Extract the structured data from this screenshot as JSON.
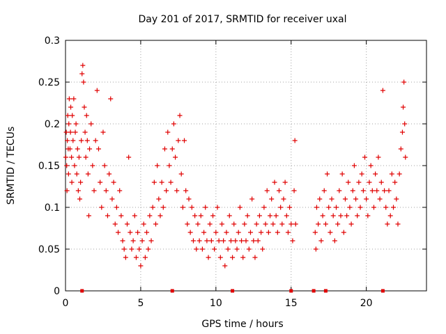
{
  "chart_data": {
    "type": "scatter",
    "title": "Day 201 of 2017, SRMTID for receiver uxal",
    "xlabel": "GPS time / hours",
    "ylabel": "SRMTID / TECUs",
    "xlim": [
      0,
      24
    ],
    "ylim": [
      0,
      0.3
    ],
    "x_ticks": [
      "0",
      "5",
      "10",
      "15",
      "20"
    ],
    "x_tick_values": [
      0,
      5,
      10,
      15,
      20
    ],
    "y_ticks": [
      "0",
      "0.05",
      "0.1",
      "0.15",
      "0.2",
      "0.25",
      "0.3"
    ],
    "y_tick_values": [
      0,
      0.05,
      0.1,
      0.15,
      0.2,
      0.25,
      0.3
    ],
    "grid": true,
    "marker": "+",
    "color": "#e00000",
    "series": [
      {
        "name": "SRMTID",
        "points": [
          [
            0.02,
            0.16
          ],
          [
            0.05,
            0.19
          ],
          [
            0.08,
            0.15
          ],
          [
            0.1,
            0.12
          ],
          [
            0.12,
            0.18
          ],
          [
            0.15,
            0.21
          ],
          [
            0.18,
            0.17
          ],
          [
            0.2,
            0.14
          ],
          [
            0.22,
            0.2
          ],
          [
            0.25,
            0.23
          ],
          [
            0.3,
            0.17
          ],
          [
            0.33,
            0.19
          ],
          [
            0.35,
            0.22
          ],
          [
            0.4,
            0.16
          ],
          [
            0.42,
            0.13
          ],
          [
            0.45,
            0.21
          ],
          [
            0.5,
            0.18
          ],
          [
            0.55,
            0.23
          ],
          [
            0.6,
            0.15
          ],
          [
            0.65,
            0.19
          ],
          [
            0.7,
            0.2
          ],
          [
            0.75,
            0.14
          ],
          [
            0.8,
            0.17
          ],
          [
            0.85,
            0.12
          ],
          [
            0.9,
            0.16
          ],
          [
            0.95,
            0.11
          ],
          [
            1.0,
            0.13
          ],
          [
            1.05,
            0.18
          ],
          [
            1.1,
            0.26
          ],
          [
            1.15,
            0.27
          ],
          [
            1.2,
            0.25
          ],
          [
            1.25,
            0.22
          ],
          [
            1.3,
            0.19
          ],
          [
            1.35,
            0.16
          ],
          [
            1.4,
            0.21
          ],
          [
            1.45,
            0.18
          ],
          [
            1.5,
            0.14
          ],
          [
            1.55,
            0.09
          ],
          [
            1.6,
            0.17
          ],
          [
            1.7,
            0.2
          ],
          [
            1.8,
            0.15
          ],
          [
            1.9,
            0.12
          ],
          [
            2.0,
            0.18
          ],
          [
            2.1,
            0.24
          ],
          [
            2.2,
            0.17
          ],
          [
            2.3,
            0.13
          ],
          [
            2.4,
            0.1
          ],
          [
            2.5,
            0.19
          ],
          [
            2.6,
            0.15
          ],
          [
            2.7,
            0.12
          ],
          [
            2.8,
            0.09
          ],
          [
            2.9,
            0.14
          ],
          [
            3.0,
            0.23
          ],
          [
            3.1,
            0.11
          ],
          [
            3.2,
            0.13
          ],
          [
            3.3,
            0.08
          ],
          [
            3.4,
            0.1
          ],
          [
            3.5,
            0.07
          ],
          [
            3.6,
            0.12
          ],
          [
            3.7,
            0.09
          ],
          [
            3.8,
            0.06
          ],
          [
            3.9,
            0.05
          ],
          [
            4.0,
            0.04
          ],
          [
            4.1,
            0.08
          ],
          [
            4.2,
            0.16
          ],
          [
            4.3,
            0.07
          ],
          [
            4.4,
            0.05
          ],
          [
            4.5,
            0.06
          ],
          [
            4.6,
            0.09
          ],
          [
            4.7,
            0.04
          ],
          [
            4.8,
            0.07
          ],
          [
            4.9,
            0.05
          ],
          [
            5.0,
            0.03
          ],
          [
            5.1,
            0.06
          ],
          [
            5.2,
            0.08
          ],
          [
            5.3,
            0.04
          ],
          [
            5.4,
            0.07
          ],
          [
            5.5,
            0.05
          ],
          [
            5.6,
            0.09
          ],
          [
            5.7,
            0.06
          ],
          [
            5.8,
            0.1
          ],
          [
            5.9,
            0.13
          ],
          [
            6.0,
            0.08
          ],
          [
            6.1,
            0.15
          ],
          [
            6.2,
            0.11
          ],
          [
            6.3,
            0.09
          ],
          [
            6.4,
            0.13
          ],
          [
            6.5,
            0.1
          ],
          [
            6.6,
            0.17
          ],
          [
            6.7,
            0.12
          ],
          [
            6.8,
            0.19
          ],
          [
            6.9,
            0.15
          ],
          [
            7.0,
            0.13
          ],
          [
            7.1,
            0.17
          ],
          [
            7.2,
            0.2
          ],
          [
            7.3,
            0.16
          ],
          [
            7.4,
            0.12
          ],
          [
            7.5,
            0.18
          ],
          [
            7.6,
            0.21
          ],
          [
            7.7,
            0.14
          ],
          [
            7.8,
            0.1
          ],
          [
            7.9,
            0.18
          ],
          [
            8.0,
            0.12
          ],
          [
            8.1,
            0.08
          ],
          [
            8.2,
            0.11
          ],
          [
            8.3,
            0.07
          ],
          [
            8.4,
            0.1
          ],
          [
            8.5,
            0.06
          ],
          [
            8.6,
            0.09
          ],
          [
            8.7,
            0.05
          ],
          [
            8.8,
            0.08
          ],
          [
            8.9,
            0.06
          ],
          [
            9.0,
            0.09
          ],
          [
            9.1,
            0.05
          ],
          [
            9.2,
            0.07
          ],
          [
            9.3,
            0.1
          ],
          [
            9.4,
            0.06
          ],
          [
            9.5,
            0.04
          ],
          [
            9.6,
            0.08
          ],
          [
            9.7,
            0.06
          ],
          [
            9.8,
            0.09
          ],
          [
            9.9,
            0.05
          ],
          [
            10.0,
            0.07
          ],
          [
            10.1,
            0.1
          ],
          [
            10.2,
            0.06
          ],
          [
            10.3,
            0.04
          ],
          [
            10.4,
            0.08
          ],
          [
            10.5,
            0.06
          ],
          [
            10.6,
            0.03
          ],
          [
            10.7,
            0.07
          ],
          [
            10.8,
            0.05
          ],
          [
            10.9,
            0.09
          ],
          [
            11.0,
            0.06
          ],
          [
            11.1,
            0.04
          ],
          [
            11.2,
            0.08
          ],
          [
            11.3,
            0.06
          ],
          [
            11.4,
            0.05
          ],
          [
            11.5,
            0.07
          ],
          [
            11.6,
            0.1
          ],
          [
            11.7,
            0.06
          ],
          [
            11.8,
            0.04
          ],
          [
            11.9,
            0.08
          ],
          [
            12.0,
            0.06
          ],
          [
            12.1,
            0.09
          ],
          [
            12.2,
            0.05
          ],
          [
            12.3,
            0.07
          ],
          [
            12.4,
            0.11
          ],
          [
            12.5,
            0.06
          ],
          [
            12.6,
            0.04
          ],
          [
            12.7,
            0.08
          ],
          [
            12.8,
            0.06
          ],
          [
            12.9,
            0.09
          ],
          [
            13.0,
            0.07
          ],
          [
            13.1,
            0.05
          ],
          [
            13.2,
            0.1
          ],
          [
            13.3,
            0.08
          ],
          [
            13.4,
            0.12
          ],
          [
            13.5,
            0.07
          ],
          [
            13.6,
            0.09
          ],
          [
            13.7,
            0.11
          ],
          [
            13.8,
            0.08
          ],
          [
            13.9,
            0.13
          ],
          [
            14.0,
            0.09
          ],
          [
            14.1,
            0.07
          ],
          [
            14.2,
            0.12
          ],
          [
            14.3,
            0.1
          ],
          [
            14.4,
            0.08
          ],
          [
            14.5,
            0.11
          ],
          [
            14.6,
            0.13
          ],
          [
            14.7,
            0.09
          ],
          [
            14.8,
            0.07
          ],
          [
            14.9,
            0.1
          ],
          [
            15.0,
            0.08
          ],
          [
            15.1,
            0.06
          ],
          [
            15.2,
            0.12
          ],
          [
            15.25,
            0.18
          ],
          [
            15.3,
            0.08
          ],
          [
            16.6,
            0.07
          ],
          [
            16.65,
            0.05
          ],
          [
            16.7,
            0.1
          ],
          [
            16.8,
            0.08
          ],
          [
            16.9,
            0.11
          ],
          [
            17.0,
            0.06
          ],
          [
            17.1,
            0.09
          ],
          [
            17.2,
            0.12
          ],
          [
            17.3,
            0.08
          ],
          [
            17.4,
            0.14
          ],
          [
            17.5,
            0.1
          ],
          [
            17.6,
            0.07
          ],
          [
            17.7,
            0.11
          ],
          [
            17.8,
            0.09
          ],
          [
            17.9,
            0.06
          ],
          [
            18.0,
            0.1
          ],
          [
            18.1,
            0.08
          ],
          [
            18.2,
            0.12
          ],
          [
            18.3,
            0.09
          ],
          [
            18.4,
            0.14
          ],
          [
            18.5,
            0.07
          ],
          [
            18.6,
            0.11
          ],
          [
            18.7,
            0.09
          ],
          [
            18.8,
            0.13
          ],
          [
            18.9,
            0.1
          ],
          [
            19.0,
            0.08
          ],
          [
            19.1,
            0.12
          ],
          [
            19.2,
            0.15
          ],
          [
            19.3,
            0.11
          ],
          [
            19.4,
            0.09
          ],
          [
            19.5,
            0.13
          ],
          [
            19.6,
            0.1
          ],
          [
            19.7,
            0.14
          ],
          [
            19.8,
            0.12
          ],
          [
            19.9,
            0.16
          ],
          [
            20.0,
            0.11
          ],
          [
            20.1,
            0.09
          ],
          [
            20.2,
            0.13
          ],
          [
            20.3,
            0.15
          ],
          [
            20.4,
            0.12
          ],
          [
            20.5,
            0.1
          ],
          [
            20.6,
            0.14
          ],
          [
            20.7,
            0.12
          ],
          [
            20.8,
            0.16
          ],
          [
            20.9,
            0.11
          ],
          [
            21.0,
            0.13
          ],
          [
            21.1,
            0.24
          ],
          [
            21.2,
            0.12
          ],
          [
            21.3,
            0.1
          ],
          [
            21.4,
            0.08
          ],
          [
            21.5,
            0.12
          ],
          [
            21.6,
            0.09
          ],
          [
            21.7,
            0.14
          ],
          [
            21.8,
            0.1
          ],
          [
            21.9,
            0.13
          ],
          [
            22.0,
            0.11
          ],
          [
            22.1,
            0.08
          ],
          [
            22.2,
            0.14
          ],
          [
            22.3,
            0.17
          ],
          [
            22.4,
            0.19
          ],
          [
            22.45,
            0.22
          ],
          [
            22.5,
            0.25
          ],
          [
            22.55,
            0.2
          ],
          [
            22.6,
            0.16
          ]
        ]
      }
    ],
    "x_axis_markers": [
      1.1,
      7.1,
      11.1,
      15.0,
      16.5,
      17.3,
      21.1
    ]
  }
}
